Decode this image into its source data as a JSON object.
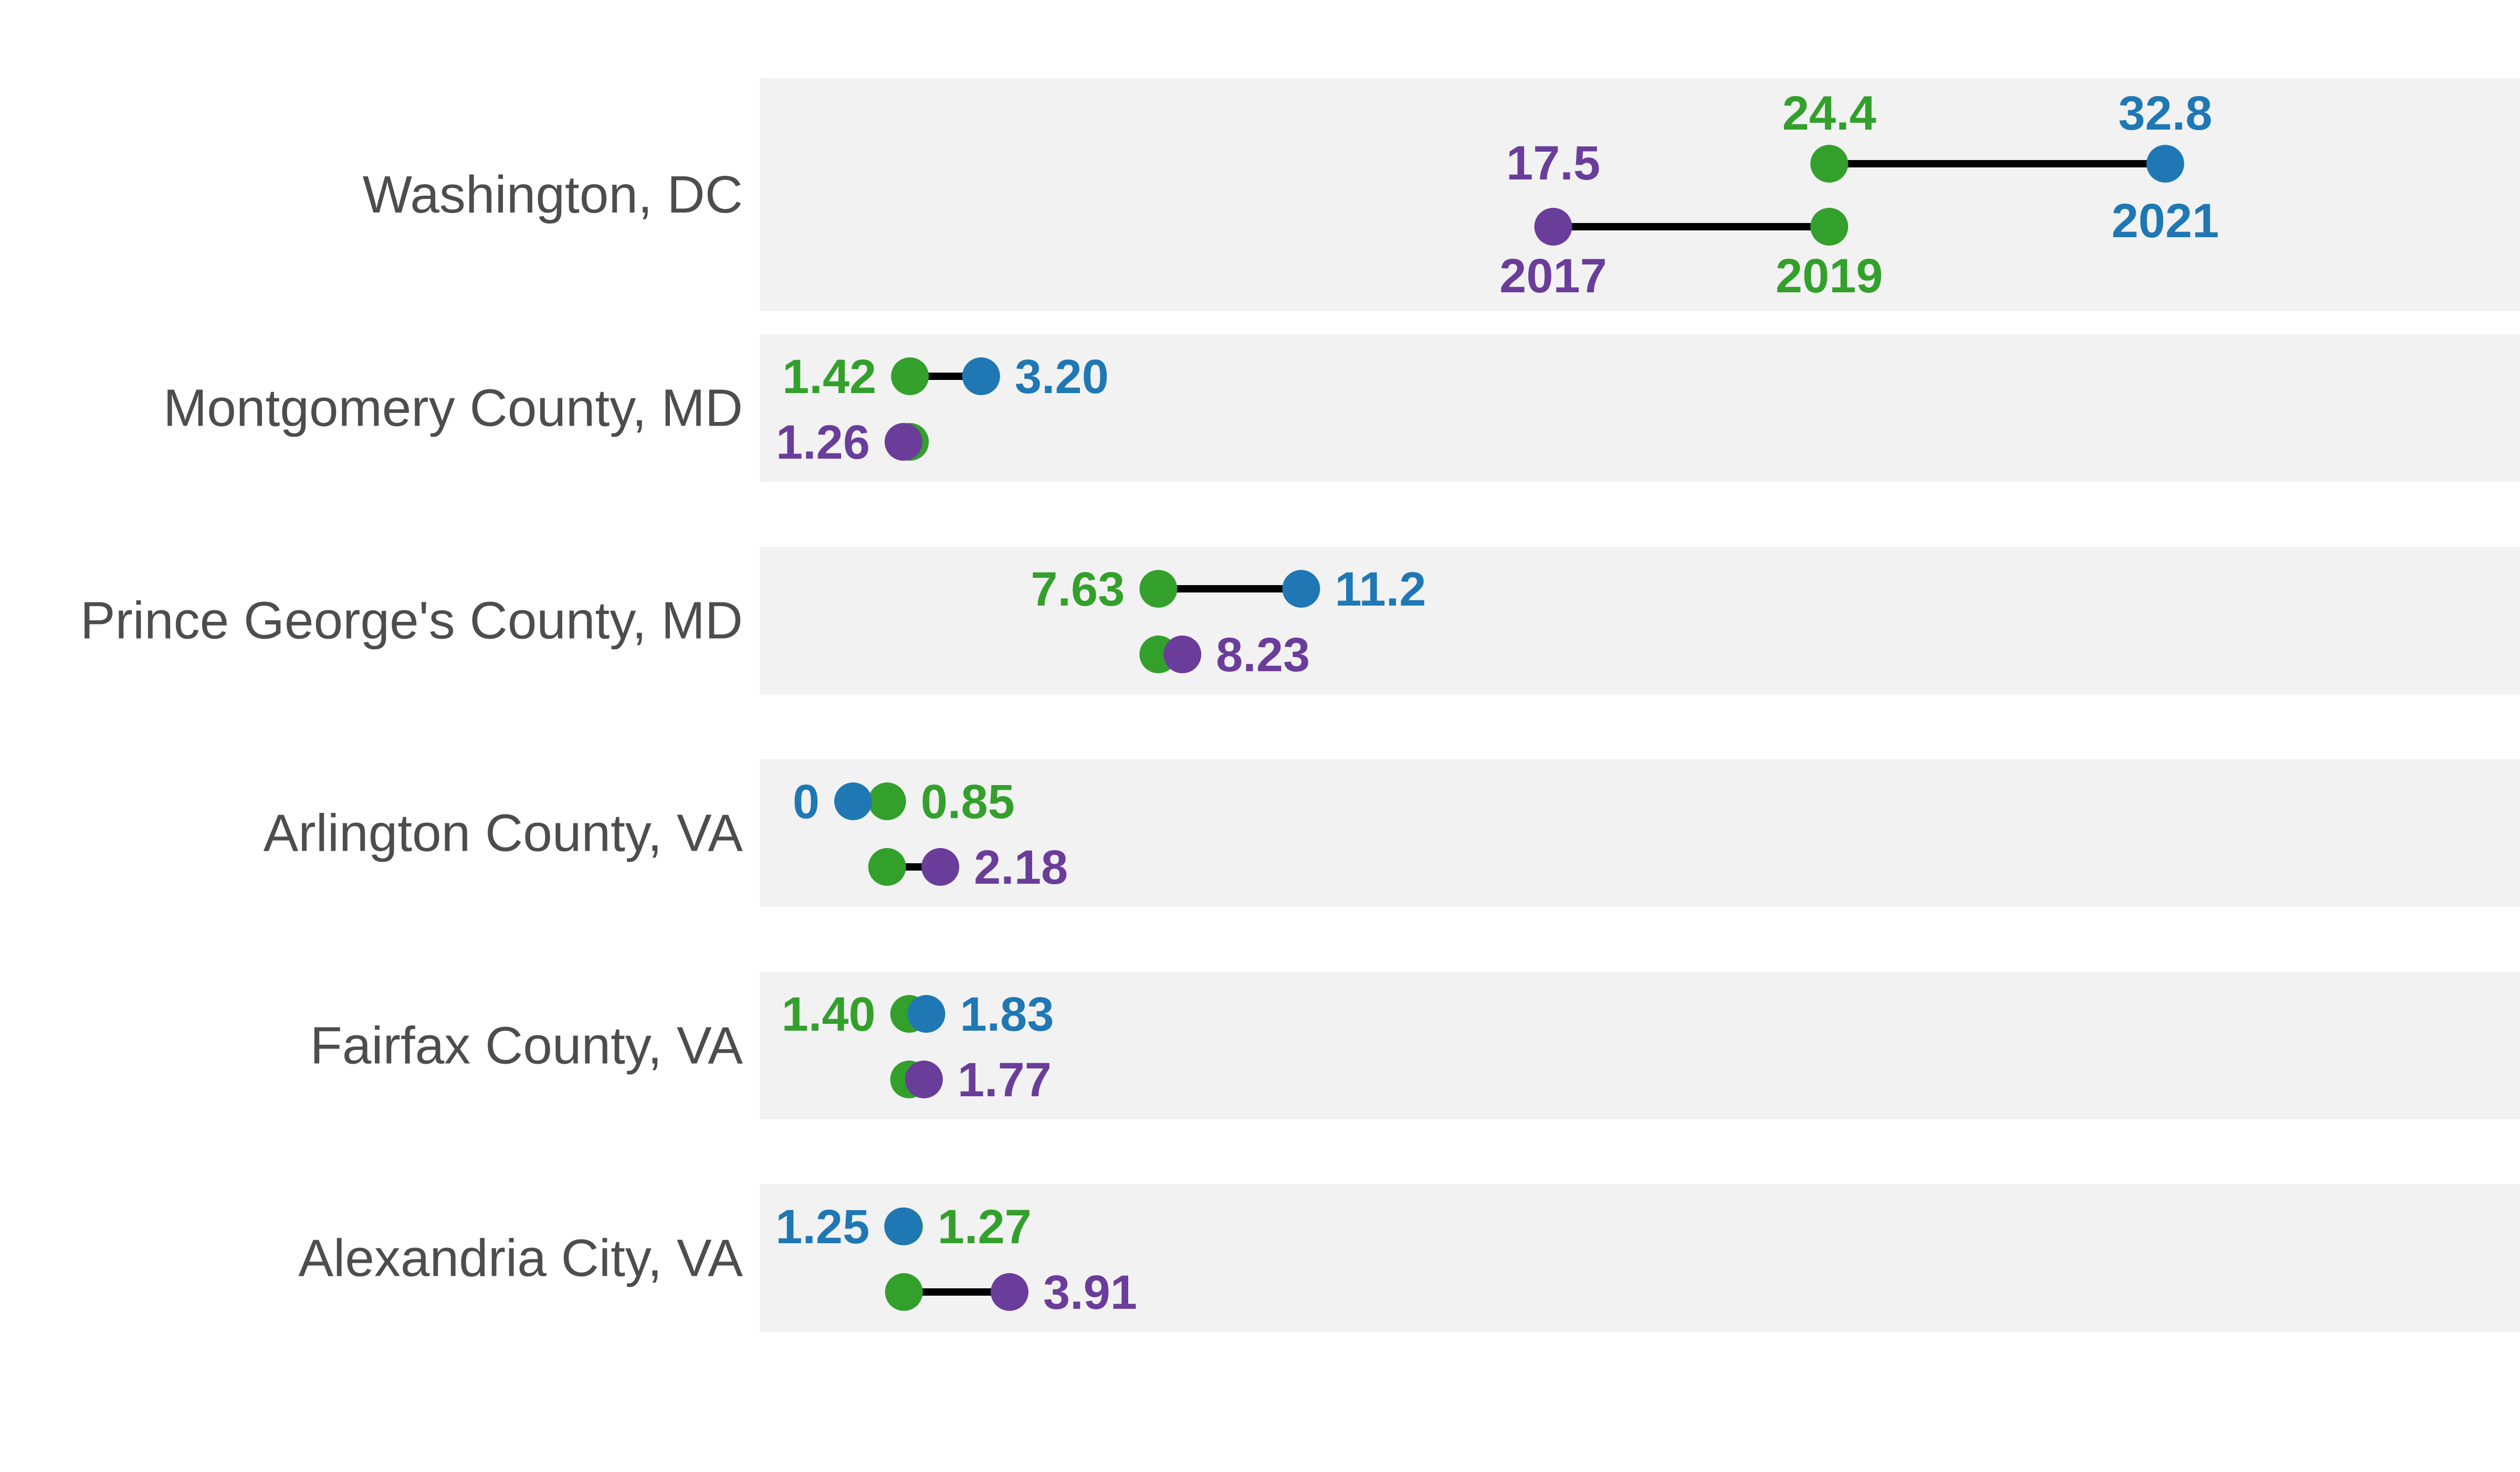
{
  "chart_data": {
    "type": "scatter",
    "subtype": "dumbbell",
    "title": "",
    "xlabel": "",
    "ylabel": "",
    "xlim": [
      0,
      34.5
    ],
    "grid": false,
    "legend": "none",
    "years": {
      "y2017": "2017",
      "y2019": "2019",
      "y2021": "2021"
    },
    "colors": {
      "y2017": "#6a3d9a",
      "y2019": "#33a02c",
      "y2021": "#1f78b4",
      "connector": "#000000",
      "panel_bg": "#f2f2f2",
      "label_text": "#4d4d4d"
    },
    "rows": [
      {
        "name": "Washington, DC",
        "v2017": 17.5,
        "v2019": 24.4,
        "v2021": 32.8,
        "label_2017": "17.5",
        "label_2019": "24.4",
        "label_2021": "32.8"
      },
      {
        "name": "Montgomery County, MD",
        "v2017": 1.26,
        "v2019": 1.42,
        "v2021": 3.2,
        "label_2017": "1.26",
        "label_2019": "1.42",
        "label_2021": "3.20"
      },
      {
        "name": "Prince George's County, MD",
        "v2017": 8.23,
        "v2019": 7.63,
        "v2021": 11.2,
        "label_2017": "8.23",
        "label_2019": "7.63",
        "label_2021": "11.2"
      },
      {
        "name": "Arlington County, VA",
        "v2017": 2.18,
        "v2019": 0.85,
        "v2021": 0,
        "label_2017": "2.18",
        "label_2019": "0.85",
        "label_2021": "0"
      },
      {
        "name": "Fairfax County, VA",
        "v2017": 1.77,
        "v2019": 1.4,
        "v2021": 1.83,
        "label_2017": "1.77",
        "label_2019": "1.40",
        "label_2021": "1.83"
      },
      {
        "name": "Alexandria City, VA",
        "v2017": 3.91,
        "v2019": 1.27,
        "v2021": 1.25,
        "label_2017": "3.91",
        "label_2019": "1.27",
        "label_2021": "1.25"
      }
    ]
  }
}
